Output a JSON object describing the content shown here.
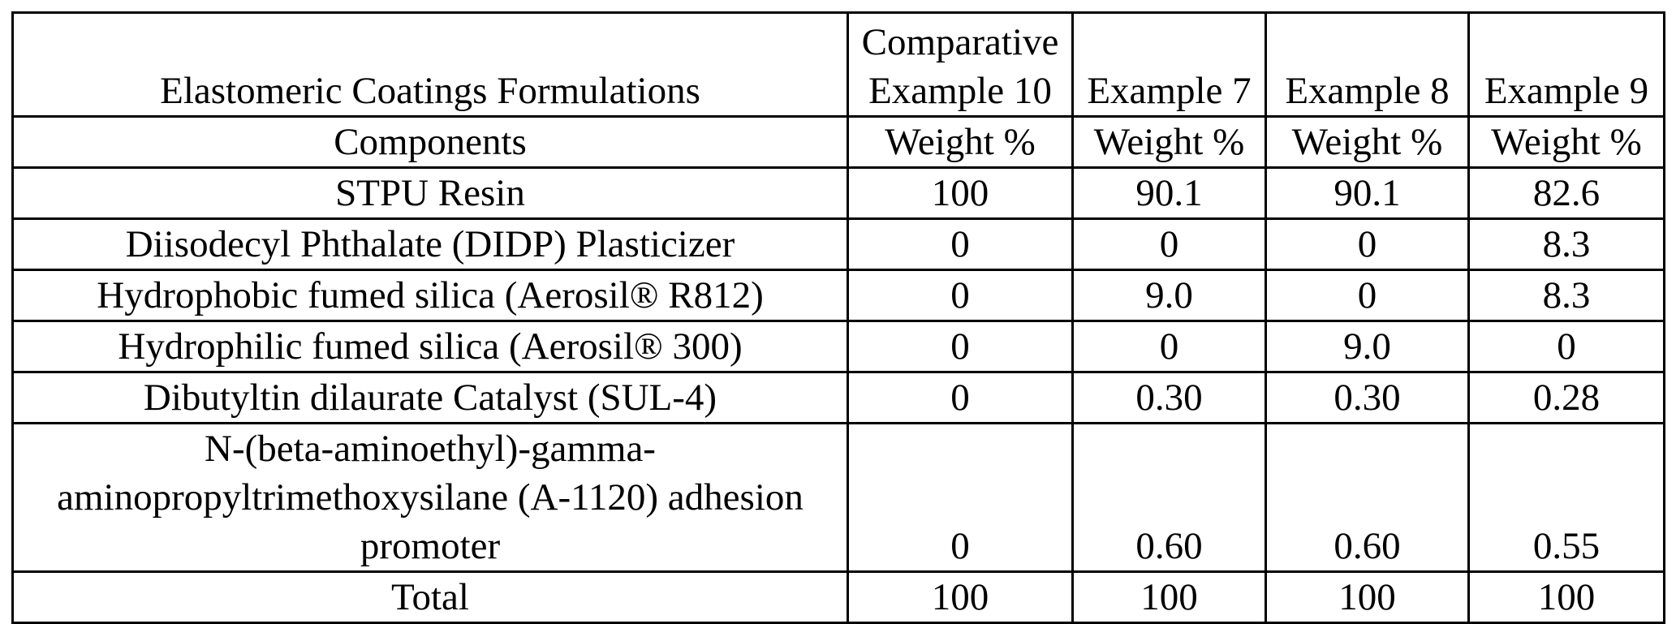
{
  "table": {
    "title": "Elastomeric Coatings Formulations",
    "columns": [
      "Comparative Example 10",
      "Example 7",
      "Example 8",
      "Example 9"
    ],
    "subheader": {
      "label": "Components",
      "units": [
        "Weight %",
        "Weight %",
        "Weight %",
        "Weight %"
      ]
    },
    "rows": [
      {
        "component": "STPU Resin",
        "values": [
          "100",
          "90.1",
          "90.1",
          "82.6"
        ]
      },
      {
        "component": "Diisodecyl Phthalate (DIDP) Plasticizer",
        "values": [
          "0",
          "0",
          "0",
          "8.3"
        ]
      },
      {
        "component": "Hydrophobic fumed silica (Aerosil® R812)",
        "values": [
          "0",
          "9.0",
          "0",
          "8.3"
        ]
      },
      {
        "component": "Hydrophilic fumed silica (Aerosil® 300)",
        "values": [
          "0",
          "0",
          "9.0",
          "0"
        ]
      },
      {
        "component": "Dibutyltin dilaurate Catalyst (SUL-4)",
        "values": [
          "0",
          "0.30",
          "0.30",
          "0.28"
        ]
      },
      {
        "component": "N-(beta-aminoethyl)-gamma-aminopropyltrimethoxysilane (A-1120) adhesion promoter",
        "values": [
          "0",
          "0.60",
          "0.60",
          "0.55"
        ]
      }
    ],
    "total": {
      "label": "Total",
      "values": [
        "100",
        "100",
        "100",
        "100"
      ]
    }
  }
}
